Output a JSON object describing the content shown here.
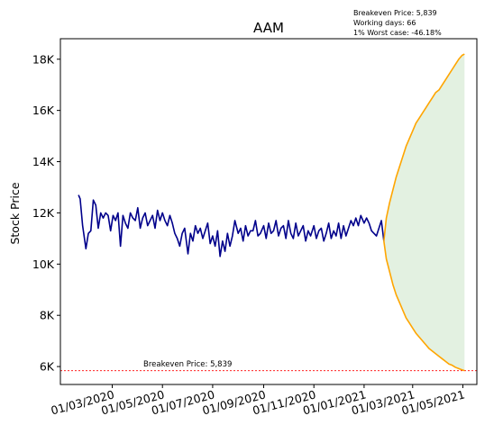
{
  "chart_data": {
    "type": "line",
    "title": "AAM",
    "ylabel": "Stock Price",
    "xlabel": "",
    "info_lines": [
      "Breakeven Price: 5,839",
      "Working days: 66",
      "1% Worst case: -46.18%"
    ],
    "breakeven_label": "Breakeven Price: 5,839",
    "breakeven_value": 5839,
    "ylim": [
      5300,
      18800
    ],
    "xlim": [
      "2019-12-29",
      "2021-05-18"
    ],
    "y_ticks": [
      6000,
      8000,
      10000,
      12000,
      14000,
      16000,
      18000
    ],
    "y_tick_labels": [
      "6K",
      "8K",
      "10K",
      "12K",
      "14K",
      "16K",
      "18K"
    ],
    "x_ticks": [
      "2020-03-01",
      "2020-05-01",
      "2020-07-01",
      "2020-09-01",
      "2020-11-01",
      "2021-01-01",
      "2021-03-01",
      "2021-05-01"
    ],
    "x_tick_labels": [
      "01/03/2020",
      "01/05/2020",
      "01/07/2020",
      "01/09/2020",
      "01/11/2020",
      "01/01/2021",
      "01/03/2021",
      "01/05/2021"
    ],
    "colors": {
      "history": "#00008b",
      "bounds": "#ffa500",
      "fill": "#e3f1e1",
      "breakeven": "#ff0000"
    },
    "series": [
      {
        "name": "",
        "role": "history",
        "x": [
          "2020-01-20",
          "2020-01-22",
          "2020-01-25",
          "2020-01-29",
          "2020-02-01",
          "2020-02-04",
          "2020-02-07",
          "2020-02-10",
          "2020-02-13",
          "2020-02-16",
          "2020-02-19",
          "2020-02-22",
          "2020-02-25",
          "2020-02-28",
          "2020-03-02",
          "2020-03-05",
          "2020-03-08",
          "2020-03-11",
          "2020-03-14",
          "2020-03-17",
          "2020-03-20",
          "2020-03-23",
          "2020-03-26",
          "2020-03-29",
          "2020-04-01",
          "2020-04-04",
          "2020-04-07",
          "2020-04-10",
          "2020-04-13",
          "2020-04-16",
          "2020-04-19",
          "2020-04-22",
          "2020-04-25",
          "2020-04-28",
          "2020-05-01",
          "2020-05-04",
          "2020-05-07",
          "2020-05-10",
          "2020-05-13",
          "2020-05-16",
          "2020-05-19",
          "2020-05-22",
          "2020-05-25",
          "2020-05-28",
          "2020-06-01",
          "2020-06-04",
          "2020-06-07",
          "2020-06-10",
          "2020-06-13",
          "2020-06-16",
          "2020-06-19",
          "2020-06-22",
          "2020-06-25",
          "2020-06-28",
          "2020-07-01",
          "2020-07-04",
          "2020-07-07",
          "2020-07-10",
          "2020-07-13",
          "2020-07-16",
          "2020-07-19",
          "2020-07-22",
          "2020-07-25",
          "2020-07-28",
          "2020-08-01",
          "2020-08-04",
          "2020-08-07",
          "2020-08-10",
          "2020-08-13",
          "2020-08-16",
          "2020-08-19",
          "2020-08-22",
          "2020-08-25",
          "2020-08-28",
          "2020-09-01",
          "2020-09-04",
          "2020-09-07",
          "2020-09-10",
          "2020-09-13",
          "2020-09-16",
          "2020-09-19",
          "2020-09-22",
          "2020-09-25",
          "2020-09-28",
          "2020-10-01",
          "2020-10-04",
          "2020-10-07",
          "2020-10-10",
          "2020-10-13",
          "2020-10-16",
          "2020-10-19",
          "2020-10-22",
          "2020-10-25",
          "2020-10-28",
          "2020-11-01",
          "2020-11-04",
          "2020-11-07",
          "2020-11-10",
          "2020-11-13",
          "2020-11-16",
          "2020-11-19",
          "2020-11-22",
          "2020-11-25",
          "2020-11-28",
          "2020-12-01",
          "2020-12-04",
          "2020-12-07",
          "2020-12-10",
          "2020-12-13",
          "2020-12-16",
          "2020-12-19",
          "2020-12-22",
          "2020-12-25",
          "2020-12-28",
          "2021-01-01",
          "2021-01-04",
          "2021-01-07",
          "2021-01-10",
          "2021-01-13",
          "2021-01-16",
          "2021-01-19",
          "2021-01-22",
          "2021-01-25"
        ],
        "values": [
          12700,
          12550,
          11500,
          10600,
          11200,
          11300,
          12500,
          12300,
          11400,
          12000,
          11800,
          12000,
          11900,
          11300,
          11900,
          11700,
          12000,
          10700,
          11900,
          11600,
          11400,
          12000,
          11800,
          11700,
          12200,
          11400,
          11800,
          12000,
          11500,
          11700,
          11900,
          11400,
          12100,
          11700,
          12000,
          11700,
          11500,
          11900,
          11600,
          11200,
          11000,
          10700,
          11200,
          11400,
          10400,
          11200,
          10900,
          11500,
          11200,
          11400,
          11000,
          11300,
          11600,
          10800,
          11100,
          10700,
          11300,
          10300,
          10900,
          10500,
          11200,
          10700,
          11100,
          11700,
          11200,
          11400,
          10900,
          11500,
          11100,
          11300,
          11300,
          11700,
          11100,
          11200,
          11500,
          11000,
          11600,
          11200,
          11300,
          11700,
          11100,
          11400,
          11500,
          11000,
          11700,
          11200,
          11000,
          11600,
          11100,
          11300,
          11500,
          10900,
          11300,
          11100,
          11500,
          11000,
          11300,
          11400,
          10900,
          11200,
          11600,
          11000,
          11300,
          11100,
          11600,
          11000,
          11500,
          11100,
          11400,
          11700,
          11500,
          11800,
          11500,
          11900,
          11600,
          11800,
          11600,
          11300,
          11200,
          11100,
          11400,
          11700,
          10900
        ]
      },
      {
        "name": "",
        "role": "upper_bound",
        "x": [
          "2021-01-25",
          "2021-01-28",
          "2021-02-01",
          "2021-02-05",
          "2021-02-09",
          "2021-02-13",
          "2021-02-17",
          "2021-02-21",
          "2021-02-25",
          "2021-03-01",
          "2021-03-05",
          "2021-03-09",
          "2021-03-13",
          "2021-03-17",
          "2021-03-21",
          "2021-03-25",
          "2021-03-29",
          "2021-04-02",
          "2021-04-06",
          "2021-04-10",
          "2021-04-14",
          "2021-04-18",
          "2021-04-22",
          "2021-04-26",
          "2021-04-30",
          "2021-05-03"
        ],
        "values": [
          10900,
          11800,
          12400,
          12900,
          13400,
          13800,
          14200,
          14600,
          14900,
          15200,
          15500,
          15700,
          15900,
          16100,
          16300,
          16500,
          16700,
          16800,
          17000,
          17200,
          17400,
          17600,
          17800,
          18000,
          18150,
          18200
        ]
      },
      {
        "name": "",
        "role": "lower_bound",
        "x": [
          "2021-01-25",
          "2021-01-28",
          "2021-02-01",
          "2021-02-05",
          "2021-02-09",
          "2021-02-13",
          "2021-02-17",
          "2021-02-21",
          "2021-02-25",
          "2021-03-01",
          "2021-03-05",
          "2021-03-09",
          "2021-03-13",
          "2021-03-17",
          "2021-03-21",
          "2021-03-25",
          "2021-03-29",
          "2021-04-02",
          "2021-04-06",
          "2021-04-10",
          "2021-04-14",
          "2021-04-18",
          "2021-04-22",
          "2021-04-26",
          "2021-04-30",
          "2021-05-03"
        ],
        "values": [
          10900,
          10200,
          9700,
          9200,
          8800,
          8500,
          8200,
          7900,
          7700,
          7500,
          7300,
          7150,
          7000,
          6850,
          6700,
          6600,
          6500,
          6400,
          6300,
          6200,
          6100,
          6050,
          5970,
          5920,
          5870,
          5839
        ]
      }
    ]
  }
}
